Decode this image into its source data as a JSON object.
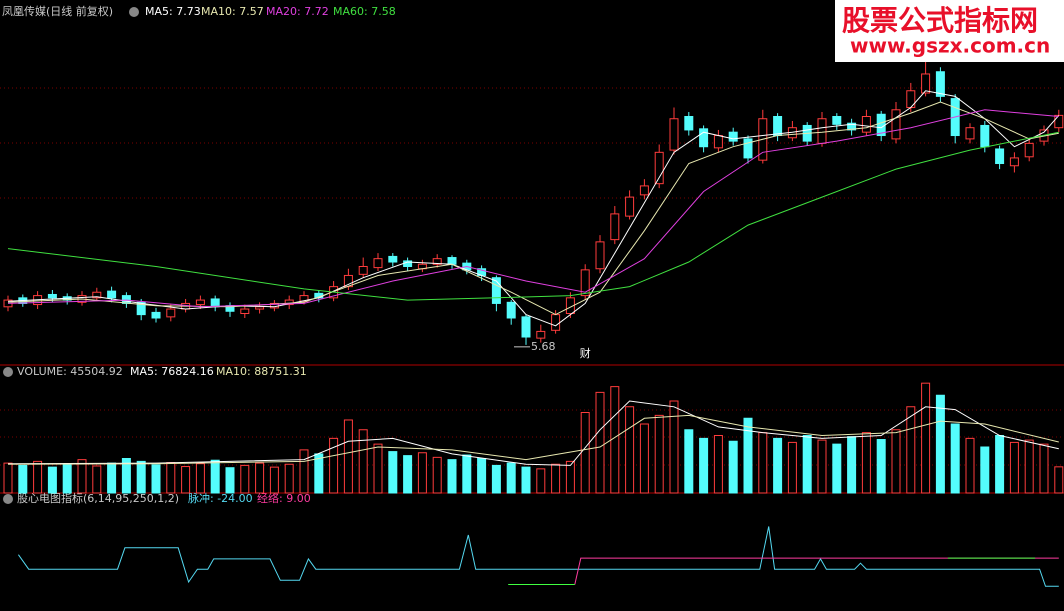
{
  "chart_data": [
    {
      "type": "candlestick",
      "title": "凤凰传媒(日线 前复权)",
      "up_color": "#ff3c3c",
      "down_color": "#54fcfc",
      "ylim": [
        5.5,
        8.6
      ],
      "open": [
        6.02,
        6.1,
        6.04,
        6.13,
        6.11,
        6.06,
        6.1,
        6.16,
        6.12,
        6.06,
        5.97,
        5.93,
        6.0,
        6.04,
        6.09,
        6.03,
        5.96,
        6.0,
        6.01,
        6.04,
        6.07,
        6.14,
        6.1,
        6.2,
        6.31,
        6.37,
        6.47,
        6.43,
        6.36,
        6.4,
        6.46,
        6.41,
        6.36,
        6.28,
        6.06,
        5.93,
        5.74,
        5.81,
        5.96,
        6.12,
        6.36,
        6.62,
        6.83,
        7.02,
        7.12,
        7.42,
        7.72,
        7.61,
        7.44,
        7.58,
        7.52,
        7.33,
        7.72,
        7.53,
        7.64,
        7.48,
        7.72,
        7.66,
        7.58,
        7.74,
        7.52,
        7.8,
        7.93,
        8.12,
        7.88,
        7.52,
        7.64,
        7.43,
        7.28,
        7.36,
        7.5,
        7.62
      ],
      "high": [
        6.12,
        6.13,
        6.16,
        6.17,
        6.14,
        6.16,
        6.19,
        6.2,
        6.15,
        6.09,
        6.01,
        6.04,
        6.09,
        6.12,
        6.12,
        6.06,
        6.04,
        6.06,
        6.08,
        6.12,
        6.16,
        6.17,
        6.25,
        6.36,
        6.46,
        6.5,
        6.5,
        6.46,
        6.44,
        6.49,
        6.48,
        6.44,
        6.39,
        6.3,
        6.08,
        5.95,
        5.86,
        5.99,
        6.15,
        6.4,
        6.66,
        6.92,
        7.06,
        7.16,
        7.47,
        7.8,
        7.76,
        7.64,
        7.6,
        7.62,
        7.55,
        7.78,
        7.75,
        7.68,
        7.67,
        7.76,
        7.75,
        7.7,
        7.78,
        7.77,
        7.85,
        8.02,
        8.3,
        8.16,
        7.92,
        7.66,
        7.68,
        7.46,
        7.4,
        7.52,
        7.64,
        7.78
      ],
      "low": [
        5.98,
        6.02,
        6.0,
        6.06,
        6.04,
        6.03,
        6.07,
        6.06,
        6.01,
        5.9,
        5.88,
        5.89,
        5.97,
        6.0,
        5.98,
        5.93,
        5.92,
        5.96,
        5.98,
        6.0,
        6.04,
        6.06,
        6.07,
        6.17,
        6.28,
        6.34,
        6.38,
        6.34,
        6.33,
        6.37,
        6.36,
        6.31,
        6.25,
        5.98,
        5.86,
        5.68,
        5.7,
        5.78,
        5.92,
        6.08,
        6.32,
        6.58,
        6.8,
        6.98,
        7.08,
        7.38,
        7.55,
        7.4,
        7.4,
        7.46,
        7.3,
        7.3,
        7.5,
        7.5,
        7.46,
        7.45,
        7.6,
        7.55,
        7.55,
        7.5,
        7.48,
        7.76,
        7.9,
        7.85,
        7.48,
        7.48,
        7.4,
        7.25,
        7.22,
        7.32,
        7.46,
        7.58
      ],
      "close": [
        6.08,
        6.05,
        6.12,
        6.1,
        6.08,
        6.12,
        6.15,
        6.1,
        6.05,
        5.95,
        5.92,
        6.0,
        6.05,
        6.08,
        6.02,
        5.98,
        6.0,
        6.02,
        6.05,
        6.08,
        6.12,
        6.1,
        6.2,
        6.3,
        6.38,
        6.45,
        6.42,
        6.38,
        6.4,
        6.45,
        6.4,
        6.35,
        6.3,
        6.05,
        5.92,
        5.75,
        5.8,
        5.95,
        6.1,
        6.35,
        6.6,
        6.85,
        7.0,
        7.1,
        7.4,
        7.7,
        7.6,
        7.45,
        7.55,
        7.5,
        7.35,
        7.7,
        7.55,
        7.62,
        7.5,
        7.7,
        7.65,
        7.6,
        7.72,
        7.55,
        7.78,
        7.95,
        8.1,
        7.9,
        7.55,
        7.62,
        7.45,
        7.3,
        7.35,
        7.48,
        7.6,
        7.73
      ],
      "lines": [
        {
          "name": "MA5: 7.73",
          "color": "#ffffff",
          "x": [
            0,
            3,
            6,
            9,
            12,
            15,
            18,
            21,
            24,
            27,
            30,
            33,
            35,
            37,
            39,
            41,
            43,
            45,
            47,
            49,
            51,
            53,
            55,
            57,
            59,
            61,
            62,
            64,
            66,
            68,
            70,
            71
          ],
          "values": [
            6.07,
            6.09,
            6.11,
            6.05,
            6.0,
            6.03,
            6.02,
            6.1,
            6.28,
            6.42,
            6.4,
            6.25,
            5.95,
            5.85,
            6.05,
            6.5,
            6.95,
            7.4,
            7.58,
            7.52,
            7.55,
            7.58,
            7.62,
            7.65,
            7.62,
            7.8,
            7.95,
            7.9,
            7.7,
            7.45,
            7.58,
            7.73
          ]
        },
        {
          "name": "MA10: 7.57",
          "color": "#e8e8b0",
          "x": [
            0,
            5,
            10,
            15,
            20,
            25,
            30,
            34,
            37,
            40,
            43,
            46,
            49,
            52,
            55,
            58,
            61,
            63,
            66,
            69,
            71
          ],
          "values": [
            6.06,
            6.09,
            6.03,
            6.02,
            6.06,
            6.3,
            6.4,
            6.15,
            5.95,
            6.15,
            6.7,
            7.3,
            7.45,
            7.55,
            7.58,
            7.62,
            7.75,
            7.85,
            7.7,
            7.52,
            7.57
          ]
        },
        {
          "name": "MA20: 7.72",
          "color": "#e040e0",
          "x": [
            0,
            8,
            13,
            20,
            26,
            31,
            35,
            39,
            43,
            47,
            51,
            56,
            61,
            66,
            71
          ],
          "values": [
            6.05,
            6.08,
            6.02,
            6.05,
            6.25,
            6.38,
            6.25,
            6.15,
            6.45,
            7.05,
            7.4,
            7.5,
            7.62,
            7.78,
            7.72
          ]
        },
        {
          "name": "MA60: 7.58",
          "color": "#40e040",
          "x": [
            0,
            10,
            20,
            27,
            33,
            38,
            42,
            46,
            50,
            55,
            60,
            65,
            71
          ],
          "values": [
            6.54,
            6.38,
            6.18,
            6.08,
            6.1,
            6.12,
            6.2,
            6.42,
            6.75,
            7.0,
            7.25,
            7.42,
            7.58
          ]
        }
      ],
      "annotations": [
        {
          "text": "5.68",
          "x": 35,
          "value": 5.68
        },
        {
          "text": "财",
          "x": 39
        }
      ]
    },
    {
      "type": "bar",
      "title": "VOLUME: 45504.92",
      "up_color": "#ff3c3c",
      "down_color": "#54fcfc",
      "ylim": [
        0,
        200000
      ],
      "values": [
        52000,
        48000,
        55000,
        45000,
        50000,
        58000,
        47000,
        52000,
        60000,
        55000,
        49000,
        53000,
        46000,
        51000,
        57000,
        44000,
        48000,
        52000,
        45000,
        50000,
        75000,
        68000,
        95000,
        127000,
        110000,
        85000,
        72000,
        65000,
        70000,
        62000,
        58000,
        66000,
        60000,
        48000,
        52000,
        45000,
        42000,
        50000,
        55000,
        140000,
        175000,
        185000,
        150000,
        120000,
        135000,
        160000,
        110000,
        95000,
        100000,
        90000,
        130000,
        105000,
        95000,
        88000,
        100000,
        92000,
        85000,
        98000,
        105000,
        93000,
        110000,
        150000,
        191000,
        170000,
        120000,
        95000,
        80000,
        100000,
        88000,
        92000,
        85000,
        45504.92
      ],
      "lines": [
        {
          "name": "MA5: 76824.16",
          "color": "#ffffff",
          "x": [
            0,
            10,
            20,
            23,
            26,
            30,
            35,
            38,
            40,
            42,
            45,
            48,
            51,
            55,
            59,
            62,
            64,
            67,
            71
          ],
          "values": [
            51000,
            52000,
            58000,
            90000,
            95000,
            68000,
            50000,
            48000,
            110000,
            160000,
            150000,
            115000,
            105000,
            95000,
            100000,
            150000,
            145000,
            100000,
            76824.16
          ]
        },
        {
          "name": "MA10: 88751.31",
          "color": "#e8e8b0",
          "x": [
            0,
            10,
            20,
            25,
            30,
            35,
            40,
            43,
            46,
            50,
            55,
            60,
            63,
            66,
            71
          ],
          "values": [
            50000,
            51000,
            55000,
            80000,
            75000,
            58000,
            80000,
            130000,
            135000,
            115000,
            100000,
            105000,
            125000,
            120000,
            88751.31
          ]
        }
      ]
    },
    {
      "type": "line",
      "title": "股心电图指标(6,14,95,250,1,2)",
      "ylim": [
        -53,
        63
      ],
      "series": [
        {
          "name": "脉冲: -24.00",
          "color": "#54d8f0",
          "x": [
            0.7,
            1.4,
            7.4,
            7.9,
            11.5,
            12.2,
            12.8,
            13.5,
            13.9,
            17.7,
            18.4,
            19.7,
            20.3,
            20.8,
            30.5,
            31.1,
            31.6,
            50.8,
            51.4,
            51.8,
            54.5,
            54.9,
            55.3,
            57.2,
            57.6,
            58.0,
            69.7,
            70.1,
            71
          ],
          "values": [
            13,
            -4,
            -4,
            21,
            21,
            -19,
            -4,
            -4,
            8,
            8,
            -17,
            -17,
            8,
            -4,
            -4,
            36,
            -4,
            -4,
            46,
            -4,
            -4,
            8,
            -4,
            -4,
            3,
            -4,
            -4,
            -24,
            -24
          ]
        },
        {
          "name": "经络: 9.00",
          "color": "#ff3ca0",
          "x": [
            38.3,
            38.7,
            71
          ],
          "values": [
            -22,
            9,
            9
          ]
        },
        {
          "color": "#40ff40",
          "x": [
            33.8,
            38.3,
            50,
            63.5,
            69.4
          ],
          "values": [
            -22,
            -22,
            null,
            9,
            9
          ]
        }
      ]
    }
  ],
  "watermark": {
    "title": "股票公式指标网",
    "url": "www.gszx.com.cn"
  }
}
